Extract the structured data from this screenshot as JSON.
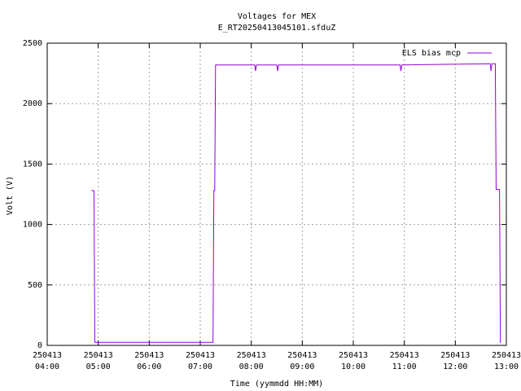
{
  "chart_data": {
    "type": "line",
    "title": "Voltages for MEX",
    "subtitle": "E_RT20250413045101.sfduZ",
    "x_label": "Time (yymmdd HH:MM)",
    "y_label": "Volt (V)",
    "x": [
      "250413 04:52",
      "250413 04:55",
      "250413 04:56",
      "250413 07:15",
      "250413 07:16",
      "250413 07:17",
      "250413 07:18",
      "250413 08:04",
      "250413 08:05",
      "250413 08:06",
      "250413 08:30",
      "250413 08:31",
      "250413 08:32",
      "250413 10:55",
      "250413 10:56",
      "250413 10:57",
      "250413 12:41",
      "250413 12:42",
      "250413 12:43",
      "250413 12:47",
      "250413 12:48",
      "250413 12:52",
      "250413 12:53"
    ],
    "series": [
      {
        "name": "ELS bias mcp",
        "color": "#9400d3",
        "values": [
          1280,
          1280,
          25,
          25,
          1280,
          1280,
          2320,
          2320,
          2270,
          2320,
          2320,
          2270,
          2320,
          2320,
          2270,
          2320,
          2330,
          2270,
          2330,
          2330,
          1290,
          1290,
          20
        ]
      }
    ],
    "xlim": [
      "250413 04:00",
      "250413 13:00"
    ],
    "xticks": [
      {
        "value": "250413 04:00",
        "label": "250413\n04:00"
      },
      {
        "value": "250413 05:00",
        "label": "250413\n05:00"
      },
      {
        "value": "250413 06:00",
        "label": "250413\n06:00"
      },
      {
        "value": "250413 07:00",
        "label": "250413\n07:00"
      },
      {
        "value": "250413 08:00",
        "label": "250413\n08:00"
      },
      {
        "value": "250413 09:00",
        "label": "250413\n09:00"
      },
      {
        "value": "250413 10:00",
        "label": "250413\n10:00"
      },
      {
        "value": "250413 11:00",
        "label": "250413\n11:00"
      },
      {
        "value": "250413 12:00",
        "label": "250413\n12:00"
      },
      {
        "value": "250413 13:00",
        "label": "250413\n13:00"
      }
    ],
    "ylim": [
      0,
      2500
    ],
    "yticks": [
      0,
      500,
      1000,
      1500,
      2000,
      2500
    ],
    "grid": true,
    "legend": "top-right"
  }
}
